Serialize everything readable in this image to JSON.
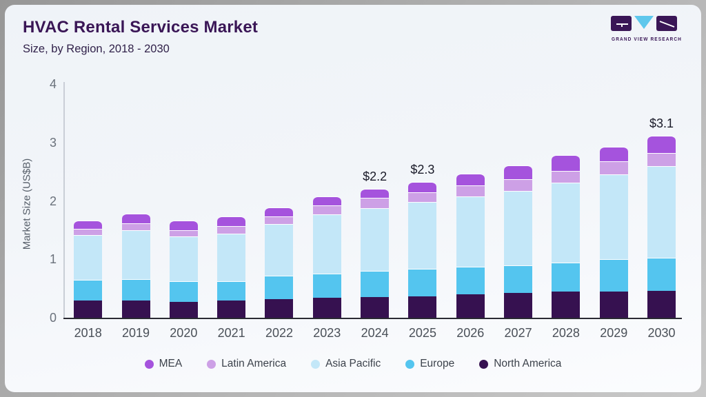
{
  "header": {
    "title": "HVAC Rental Services Market",
    "subtitle": "Size, by Region, 2018 - 2030"
  },
  "logo": {
    "text": "GRAND VIEW RESEARCH",
    "purple": "#3a1656",
    "blue": "#5ec7ec"
  },
  "chart_data": {
    "type": "bar",
    "stacked": true,
    "title": "HVAC Rental Services Market Size, by Region, 2018 - 2030",
    "ylabel": "Market Size (US$B)",
    "ylim": [
      0,
      4
    ],
    "yticks": [
      0,
      1,
      2,
      3,
      4
    ],
    "grid": false,
    "legend_position": "bottom",
    "categories": [
      "2018",
      "2019",
      "2020",
      "2021",
      "2022",
      "2023",
      "2024",
      "2025",
      "2026",
      "2027",
      "2028",
      "2029",
      "2030"
    ],
    "series": [
      {
        "key": "north-america",
        "name": "North America",
        "color": "#361150",
        "values": [
          0.29,
          0.3,
          0.27,
          0.29,
          0.32,
          0.34,
          0.36,
          0.37,
          0.4,
          0.42,
          0.45,
          0.45,
          0.46
        ]
      },
      {
        "key": "europe",
        "name": "Europe",
        "color": "#54c5ef",
        "values": [
          0.36,
          0.36,
          0.35,
          0.34,
          0.4,
          0.42,
          0.44,
          0.47,
          0.47,
          0.48,
          0.49,
          0.55,
          0.57
        ]
      },
      {
        "key": "asia-pacific",
        "name": "Asia Pacific",
        "color": "#c3e7f8",
        "values": [
          0.77,
          0.84,
          0.77,
          0.81,
          0.89,
          1.01,
          1.08,
          1.14,
          1.21,
          1.27,
          1.37,
          1.46,
          1.57
        ]
      },
      {
        "key": "latin-america",
        "name": "Latin America",
        "color": "#cda0e6",
        "values": [
          0.1,
          0.12,
          0.11,
          0.13,
          0.13,
          0.15,
          0.17,
          0.17,
          0.19,
          0.2,
          0.2,
          0.22,
          0.22
        ]
      },
      {
        "key": "mea",
        "name": "MEA",
        "color": "#a553dd",
        "values": [
          0.14,
          0.16,
          0.16,
          0.16,
          0.15,
          0.16,
          0.16,
          0.18,
          0.2,
          0.24,
          0.27,
          0.25,
          0.29
        ]
      }
    ],
    "bar_labels": {
      "2024": "$2.2",
      "2025": "$2.3",
      "2030": "$3.1"
    },
    "legend": [
      {
        "label": "MEA",
        "color": "#a553dd"
      },
      {
        "label": "Latin America",
        "color": "#cda0e6"
      },
      {
        "label": "Asia Pacific",
        "color": "#c3e7f8"
      },
      {
        "label": "Europe",
        "color": "#54c5ef"
      },
      {
        "label": "North America",
        "color": "#361150"
      }
    ]
  }
}
